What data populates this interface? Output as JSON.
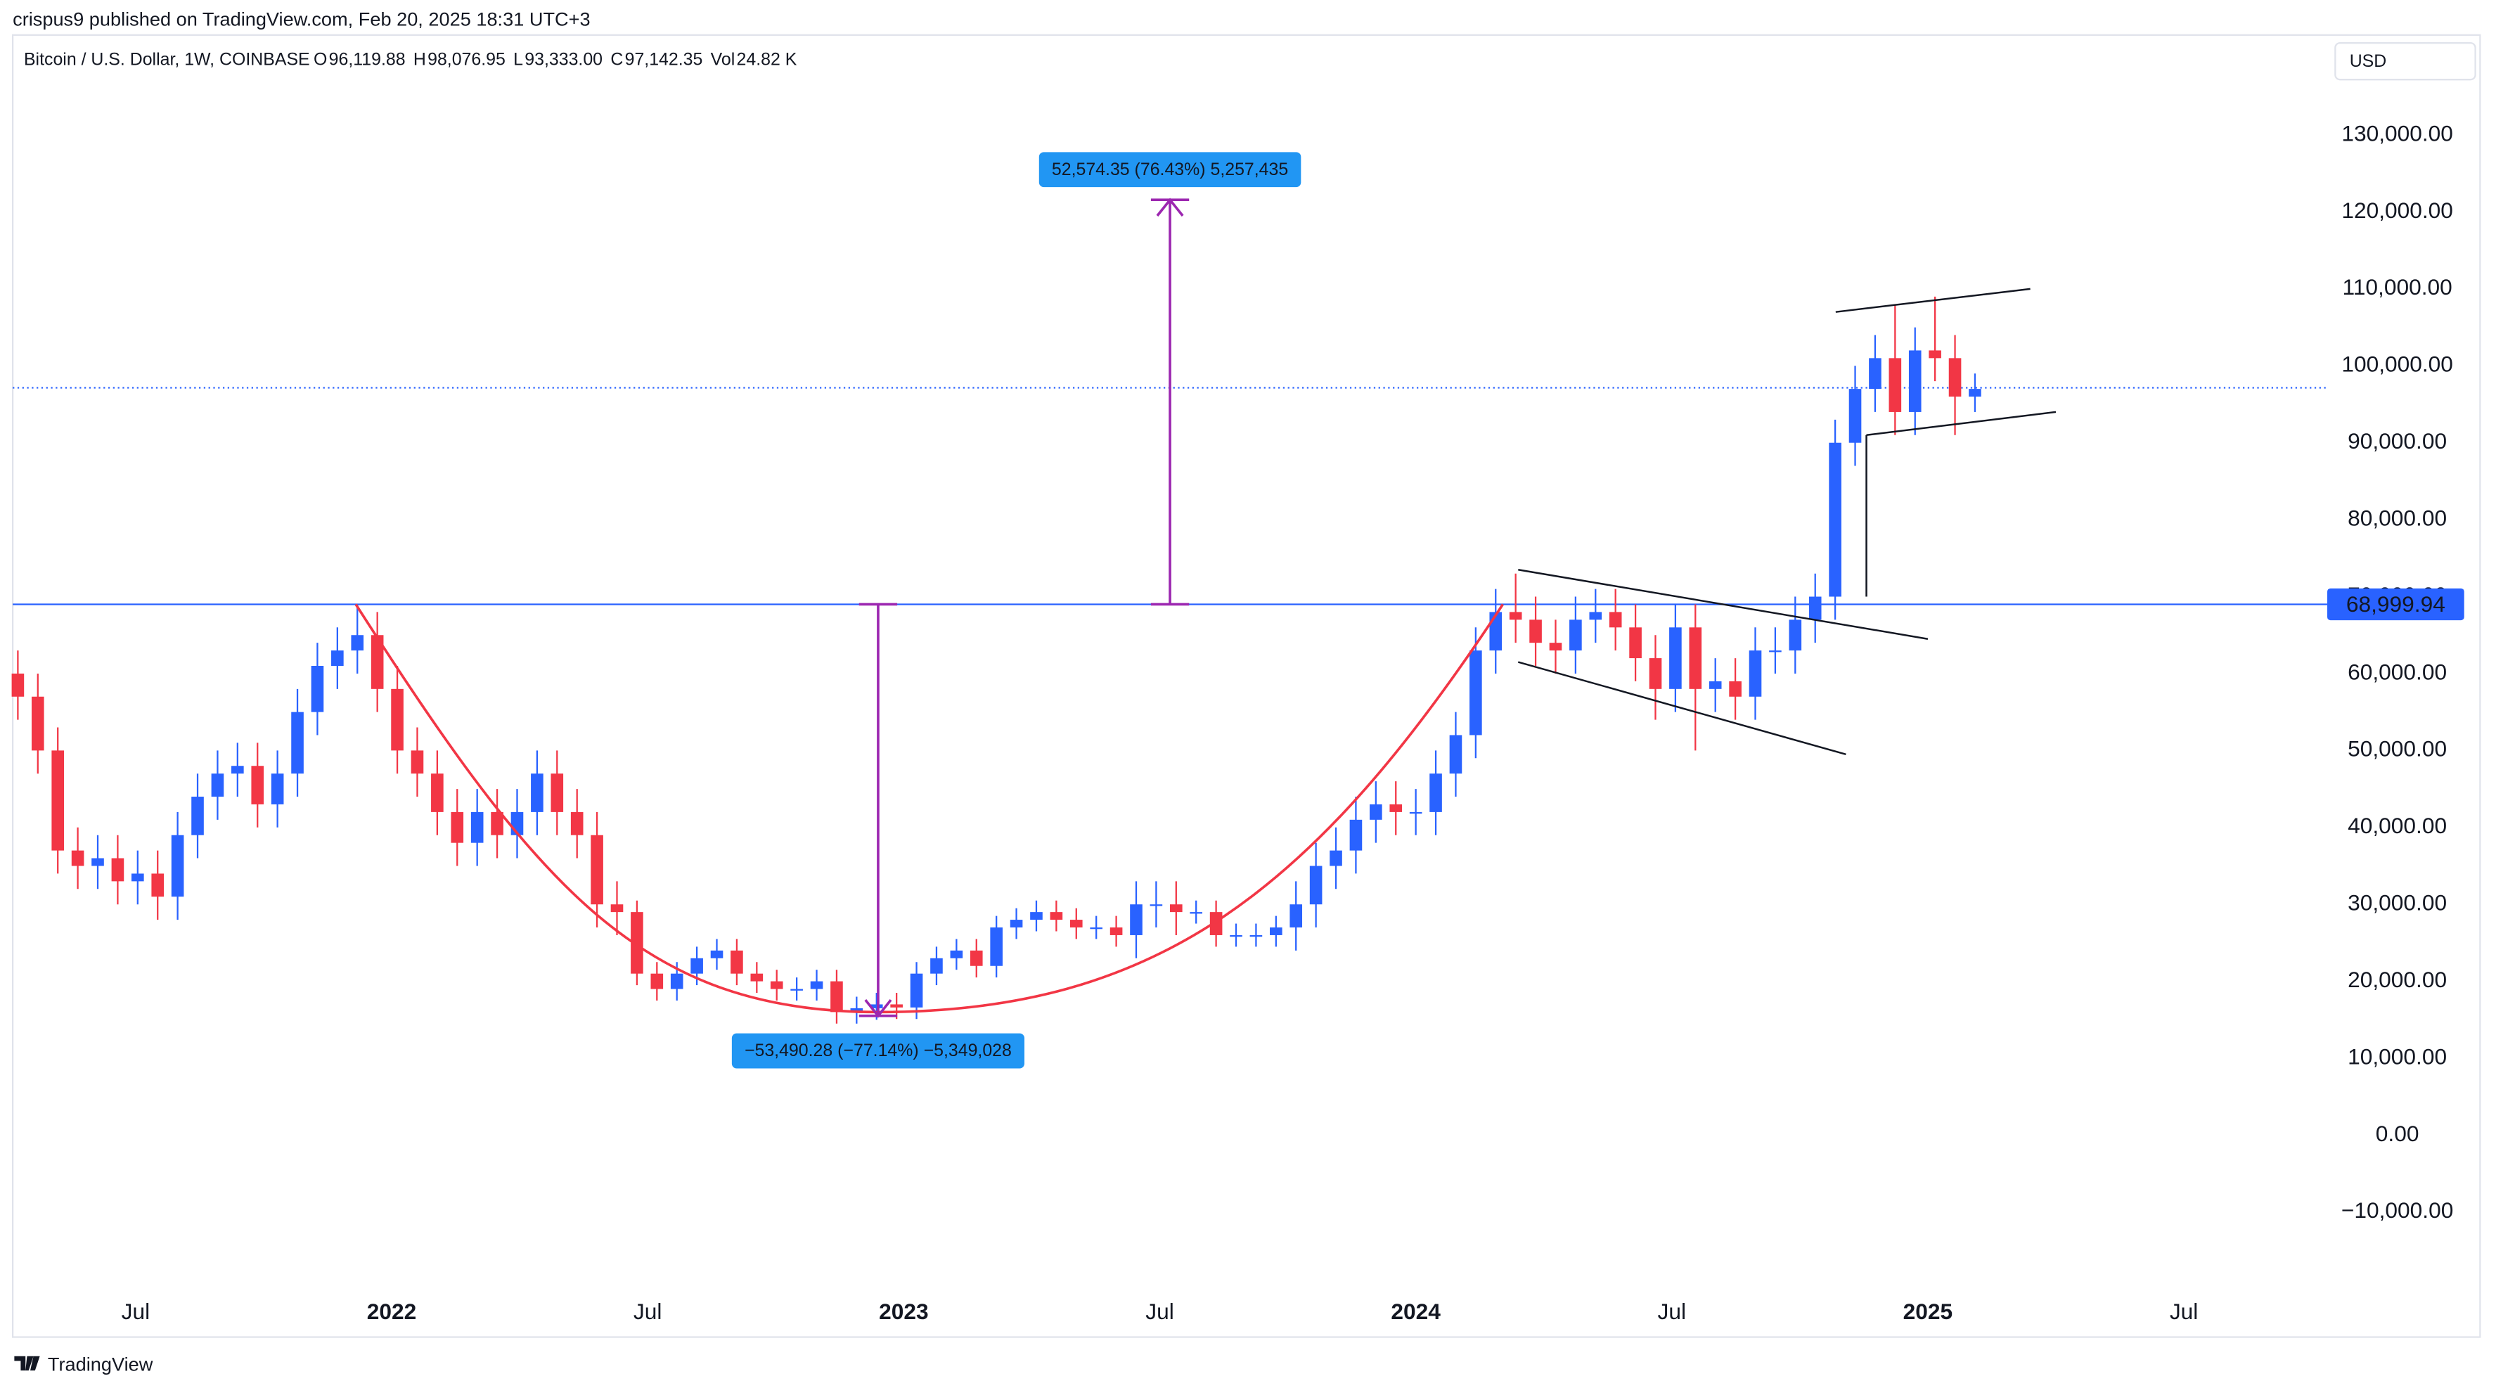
{
  "header": {
    "author_line": "crispus9 published on TradingView.com, Feb 20, 2025 18:31 UTC+3",
    "symbol": "Bitcoin / U.S. Dollar, 1W, COINBASE",
    "ohlc": [
      {
        "key": "O",
        "label": "96,119.88"
      },
      {
        "key": "H",
        "label": "98,076.95"
      },
      {
        "key": "L",
        "label": "93,333.00"
      },
      {
        "key": "C",
        "label": "97,142.35",
        "value": 97142.35
      },
      {
        "key": "Vol",
        "label": "24.82 K"
      }
    ],
    "currency": "USD"
  },
  "chart_data": {
    "type": "candlestick",
    "x": [
      2021.27,
      2021.309,
      2021.348,
      2021.387,
      2021.426,
      2021.465,
      2021.504,
      2021.543,
      2021.582,
      2021.621,
      2021.66,
      2021.699,
      2021.738,
      2021.777,
      2021.816,
      2021.855,
      2021.894,
      2021.933,
      2021.972,
      2022.011,
      2022.05,
      2022.089,
      2022.128,
      2022.167,
      2022.206,
      2022.245,
      2022.284,
      2022.323,
      2022.362,
      2022.401,
      2022.44,
      2022.479,
      2022.518,
      2022.557,
      2022.596,
      2022.635,
      2022.674,
      2022.713,
      2022.752,
      2022.791,
      2022.83,
      2022.869,
      2022.908,
      2022.947,
      2022.986,
      2023.025,
      2023.064,
      2023.103,
      2023.142,
      2023.181,
      2023.22,
      2023.259,
      2023.298,
      2023.337,
      2023.376,
      2023.415,
      2023.454,
      2023.493,
      2023.532,
      2023.571,
      2023.61,
      2023.649,
      2023.688,
      2023.727,
      2023.766,
      2023.805,
      2023.844,
      2023.883,
      2023.922,
      2023.961,
      2024.0,
      2024.039,
      2024.078,
      2024.117,
      2024.156,
      2024.195,
      2024.234,
      2024.273,
      2024.312,
      2024.351,
      2024.39,
      2024.429,
      2024.468,
      2024.507,
      2024.546,
      2024.585,
      2024.624,
      2024.663,
      2024.702,
      2024.741,
      2024.78,
      2024.819,
      2024.858,
      2024.897,
      2024.936,
      2024.975,
      2025.014,
      2025.053,
      2025.092
    ],
    "open": [
      60000,
      57000,
      50000,
      37000,
      35000,
      36000,
      33000,
      34000,
      31000,
      39000,
      44000,
      47000,
      48000,
      43000,
      47000,
      55000,
      61000,
      63000,
      65000,
      58000,
      50000,
      47000,
      42000,
      38000,
      42000,
      39000,
      42000,
      47000,
      42000,
      39000,
      30000,
      29000,
      21000,
      19000,
      21000,
      23000,
      24000,
      21000,
      20000,
      19000,
      19000,
      20000,
      16000,
      16500,
      17000,
      16600,
      21000,
      23000,
      24000,
      22000,
      27000,
      28000,
      29000,
      28000,
      27000,
      27000,
      26000,
      30000,
      30000,
      29000,
      29000,
      26000,
      26000,
      26000,
      27000,
      30000,
      35000,
      37000,
      41000,
      43000,
      42000,
      42000,
      47000,
      52000,
      63000,
      68000,
      67000,
      64000,
      63000,
      67000,
      68000,
      66000,
      62000,
      58000,
      66000,
      58000,
      59000,
      57000,
      63000,
      63000,
      67000,
      70000,
      90000,
      97000,
      101000,
      94000,
      102000,
      101000,
      96000
    ],
    "high": [
      63000,
      60000,
      53000,
      40000,
      39000,
      39000,
      37000,
      37000,
      42000,
      47000,
      50000,
      51000,
      51000,
      50000,
      58000,
      64000,
      66000,
      69000,
      68000,
      61000,
      53000,
      50000,
      45000,
      45000,
      45000,
      45000,
      50000,
      50000,
      45000,
      42000,
      33000,
      30500,
      22500,
      22500,
      24500,
      25500,
      25500,
      22500,
      21500,
      20500,
      21500,
      21500,
      18000,
      18500,
      18500,
      22500,
      24500,
      25500,
      25500,
      28500,
      29500,
      30500,
      30500,
      29500,
      28500,
      28500,
      33000,
      33000,
      33000,
      30500,
      30500,
      27500,
      27500,
      28500,
      33000,
      38000,
      40000,
      44000,
      46000,
      46000,
      45000,
      50000,
      55000,
      66000,
      71000,
      73000,
      70000,
      67000,
      70000,
      71000,
      71000,
      69000,
      65000,
      69000,
      69000,
      62000,
      62000,
      66000,
      66000,
      70000,
      73000,
      93000,
      100000,
      104000,
      108000,
      105000,
      109000,
      104000,
      99000
    ],
    "low": [
      54000,
      47000,
      34000,
      32000,
      32000,
      30000,
      30000,
      28000,
      28000,
      36000,
      41000,
      44000,
      40000,
      40000,
      44000,
      52000,
      58000,
      60000,
      55000,
      47000,
      44000,
      39000,
      35000,
      35000,
      36000,
      36000,
      39000,
      39000,
      36000,
      27000,
      26000,
      19500,
      17500,
      17500,
      19500,
      21500,
      19500,
      18500,
      17500,
      17500,
      17500,
      14500,
      14500,
      15000,
      15100,
      15100,
      19500,
      21500,
      20500,
      20500,
      25500,
      26500,
      26500,
      25500,
      25500,
      24500,
      23000,
      27000,
      26000,
      27500,
      24500,
      24500,
      24500,
      24500,
      24000,
      27000,
      32000,
      34000,
      38000,
      39000,
      39000,
      39000,
      44000,
      49000,
      60000,
      64000,
      61000,
      60000,
      60000,
      64000,
      63000,
      59000,
      54000,
      55000,
      50000,
      55000,
      54000,
      54000,
      60000,
      60000,
      64000,
      67000,
      87000,
      94000,
      91000,
      91000,
      98000,
      91000,
      94000
    ],
    "close": [
      57000,
      50000,
      37000,
      35000,
      36000,
      33000,
      34000,
      31000,
      39000,
      44000,
      47000,
      48000,
      43000,
      47000,
      55000,
      61000,
      63000,
      65000,
      58000,
      50000,
      47000,
      42000,
      38000,
      42000,
      39000,
      42000,
      47000,
      42000,
      39000,
      30000,
      29000,
      21000,
      19000,
      21000,
      23000,
      24000,
      21000,
      20000,
      19000,
      19000,
      20000,
      16000,
      16500,
      17000,
      16600,
      21000,
      23000,
      24000,
      22000,
      27000,
      28000,
      29000,
      28000,
      27000,
      27000,
      26000,
      30000,
      30000,
      29000,
      29000,
      26000,
      26000,
      26000,
      27000,
      30000,
      35000,
      37000,
      41000,
      43000,
      42000,
      42000,
      47000,
      52000,
      63000,
      68000,
      67000,
      64000,
      63000,
      67000,
      68000,
      66000,
      62000,
      58000,
      66000,
      58000,
      59000,
      57000,
      63000,
      63000,
      67000,
      70000,
      90000,
      97000,
      101000,
      94000,
      102000,
      101000,
      96000,
      97000
    ],
    "up_color": "#2962ff",
    "down_color": "#f23645",
    "xlim": [
      2021.26,
      2025.78
    ],
    "xticks": [
      {
        "value": 2021.5,
        "label": "Jul"
      },
      2022,
      {
        "value": 2022.5,
        "label": "Jul"
      },
      2023,
      {
        "value": 2023.5,
        "label": "Jul"
      },
      2024,
      {
        "value": 2024.5,
        "label": "Jul"
      },
      2025,
      {
        "value": 2025.5,
        "label": "Jul"
      }
    ],
    "ylim": [
      -19000,
      143000
    ],
    "yticks": [
      {
        "value": -10000,
        "label": "−10,000.00"
      },
      {
        "value": 0,
        "label": "0.00"
      },
      {
        "value": 10000,
        "label": "10,000.00"
      },
      {
        "value": 20000,
        "label": "20,000.00"
      },
      {
        "value": 30000,
        "label": "30,000.00"
      },
      {
        "value": 40000,
        "label": "40,000.00"
      },
      {
        "value": 50000,
        "label": "50,000.00"
      },
      {
        "value": 60000,
        "label": "60,000.00"
      },
      {
        "value": 70000,
        "label": "70,000.00"
      },
      {
        "value": 80000,
        "label": "80,000.00"
      },
      {
        "value": 90000,
        "label": "90,000.00"
      },
      {
        "value": 100000,
        "label": "100,000.00"
      },
      {
        "value": 110000,
        "label": "110,000.00"
      },
      {
        "value": 120000,
        "label": "120,000.00"
      },
      {
        "value": 130000,
        "label": "130,000.00"
      }
    ],
    "grid": false,
    "price_line": {
      "value": 68999.94,
      "label": "68,999.94",
      "color": "#2962ff"
    },
    "measures": [
      {
        "label": "52,574.35 (76.43%) 5,257,435",
        "x": 2023.52,
        "from": 68999.94,
        "to": 121574.29,
        "color": "#9c27b0"
      },
      {
        "label": "−53,490.28 (−77.14%) −5,349,028",
        "x": 2022.95,
        "from": 68999.94,
        "to": 15509.66,
        "color": "#9c27b0"
      }
    ],
    "curve": {
      "x": [
        2021.93,
        2022.95,
        2024.17
      ],
      "values": [
        69000,
        16000,
        69000
      ],
      "color": "#f23645"
    },
    "trend_lines": [
      {
        "x": [
          2024.2,
          2025.0
        ],
        "values": [
          73500,
          64500
        ]
      },
      {
        "x": [
          2024.2,
          2024.84
        ],
        "values": [
          61500,
          49500
        ]
      },
      {
        "x": [
          2024.82,
          2025.2
        ],
        "values": [
          107000,
          110000
        ]
      },
      {
        "x": [
          2024.88,
          2025.25
        ],
        "values": [
          91000,
          94000
        ]
      },
      {
        "x": [
          2024.88,
          2024.88
        ],
        "values": [
          70000,
          91000
        ]
      }
    ]
  },
  "footer": {
    "brand": "TradingView"
  }
}
